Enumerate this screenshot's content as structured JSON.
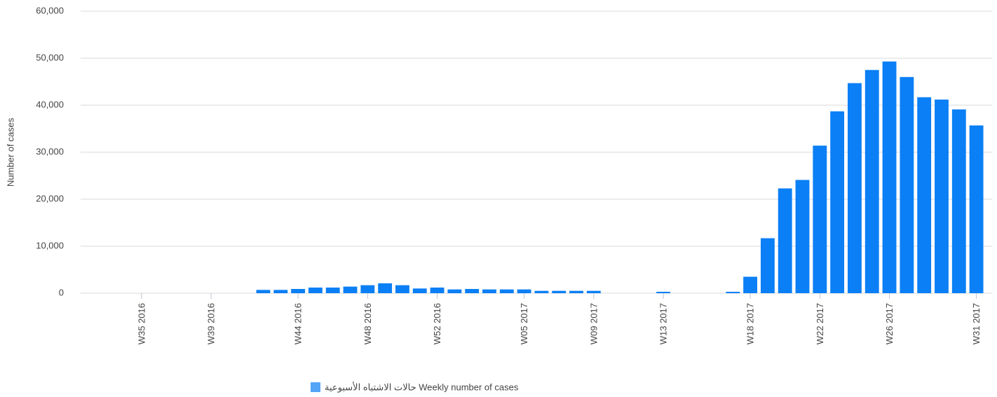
{
  "chart_data": {
    "type": "bar",
    "y_label": "Number of cases",
    "categories": [
      null,
      null,
      null,
      "W35 2016",
      null,
      null,
      null,
      "W39 2016",
      null,
      null,
      null,
      null,
      "W44 2016",
      null,
      null,
      null,
      "W48 2016",
      null,
      null,
      null,
      "W52 2016",
      null,
      null,
      null,
      null,
      "W05 2017",
      null,
      null,
      null,
      "W09 2017",
      null,
      null,
      null,
      "W13 2017",
      null,
      null,
      null,
      null,
      "W18 2017",
      null,
      null,
      null,
      "W22 2017",
      null,
      null,
      null,
      "W26 2017",
      null,
      null,
      null,
      null,
      "W31 2017"
    ],
    "series": [
      {
        "name": "حالات الاشتباه الأسبوعية Weekly number of cases",
        "color": "#0b7ff5",
        "values": [
          0,
          0,
          0,
          0,
          0,
          0,
          0,
          0,
          0,
          0,
          700,
          700,
          900,
          1200,
          1200,
          1400,
          1700,
          2100,
          1700,
          1000,
          1200,
          800,
          900,
          800,
          800,
          800,
          500,
          500,
          500,
          500,
          0,
          0,
          0,
          300,
          0,
          0,
          0,
          300,
          3500,
          11700,
          22300,
          24100,
          31400,
          38700,
          44700,
          47500,
          49300,
          46000,
          41700,
          41200,
          39100,
          35700
        ]
      }
    ],
    "ylim": [
      0,
      60000
    ],
    "yticks": [
      0,
      {
        "value": 10000,
        "label": "10,000"
      },
      {
        "value": 20000,
        "label": "20,000"
      },
      {
        "value": 30000,
        "label": "30,000"
      },
      {
        "value": 40000,
        "label": "40,000"
      },
      {
        "value": 50000,
        "label": "50,000"
      },
      {
        "value": 60000,
        "label": "60,000"
      }
    ],
    "grid": true
  }
}
